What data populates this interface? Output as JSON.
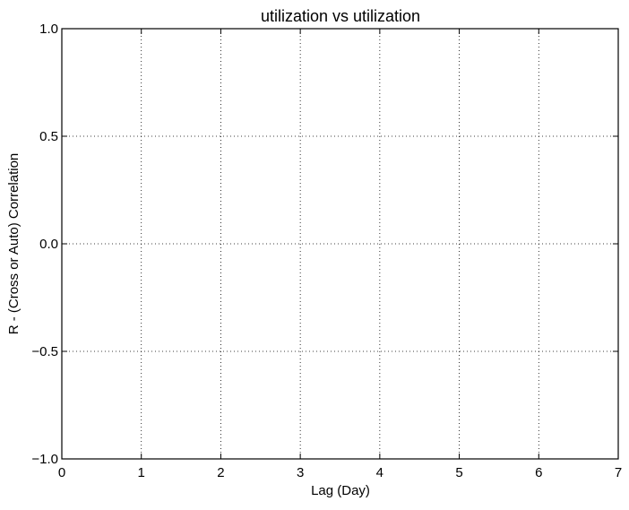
{
  "chart_data": {
    "type": "line",
    "title": "utilization vs utilization",
    "xlabel": "Lag (Day)",
    "ylabel": "R - (Cross or Auto) Correlation",
    "xlim": [
      0,
      7
    ],
    "ylim": [
      -1.0,
      1.0
    ],
    "x_ticks": [
      0,
      1,
      2,
      3,
      4,
      5,
      6,
      7
    ],
    "y_ticks": [
      -1.0,
      -0.5,
      0.0,
      0.5,
      1.0
    ],
    "x_tick_labels": [
      "0",
      "1",
      "2",
      "3",
      "4",
      "5",
      "6",
      "7"
    ],
    "y_tick_labels": [
      "−1.0",
      "−0.5",
      "0.0",
      "0.5",
      "1.0"
    ],
    "grid": true,
    "series": []
  }
}
